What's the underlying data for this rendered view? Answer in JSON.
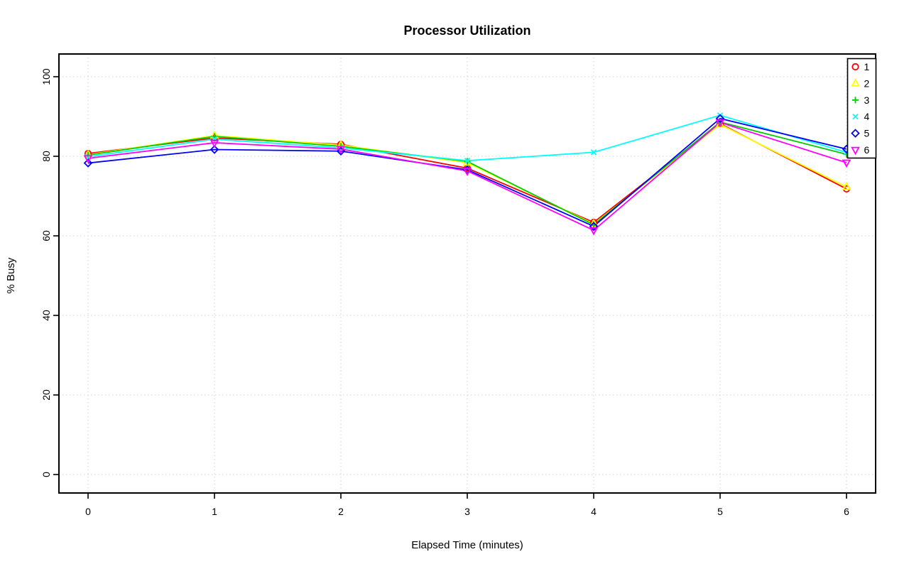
{
  "chart_data": {
    "type": "line",
    "title": "Processor Utilization",
    "xlabel": "Elapsed Time (minutes)",
    "ylabel": "% Busy",
    "x": [
      0,
      1,
      2,
      3,
      4,
      5,
      6
    ],
    "xticks": [
      0,
      1,
      2,
      3,
      4,
      5,
      6
    ],
    "yticks": [
      0,
      20,
      40,
      60,
      80,
      100
    ],
    "xlim": [
      -0.24,
      6.24
    ],
    "ylim": [
      -4,
      104
    ],
    "grid": "dotted",
    "grid_color": "#d2d2d2",
    "axis_color": "#000000",
    "background_color": "#ffffff",
    "legend_position": "top-right",
    "series": [
      {
        "name": "1",
        "marker": "circle",
        "color": "#ff0000",
        "values": [
          80.7,
          84.6,
          83.0,
          77.0,
          63.4,
          88.2,
          71.8
        ]
      },
      {
        "name": "2",
        "marker": "triangle-up",
        "color": "#ffff00",
        "values": [
          80.4,
          85.2,
          82.8,
          78.4,
          63.0,
          88.0,
          72.3
        ]
      },
      {
        "name": "3",
        "marker": "plus",
        "color": "#00cd00",
        "values": [
          80.3,
          85.0,
          82.5,
          78.7,
          62.8,
          88.6,
          80.5
        ]
      },
      {
        "name": "4",
        "marker": "x",
        "color": "#00ffff",
        "values": [
          79.9,
          84.3,
          82.1,
          78.9,
          81.0,
          90.3,
          81.0
        ]
      },
      {
        "name": "5",
        "marker": "diamond",
        "color": "#0000ff",
        "values": [
          78.3,
          81.7,
          81.3,
          76.6,
          62.4,
          89.5,
          81.8
        ]
      },
      {
        "name": "6",
        "marker": "triangle-down",
        "color": "#ff00ff",
        "values": [
          79.5,
          83.4,
          81.8,
          76.3,
          61.4,
          88.5,
          78.4
        ]
      }
    ],
    "legend_items": [
      {
        "label": "1",
        "marker": "circle",
        "color": "#ff0000"
      },
      {
        "label": "2",
        "marker": "triangle-up",
        "color": "#ffff00"
      },
      {
        "label": "3",
        "marker": "plus",
        "color": "#00cd00"
      },
      {
        "label": "4",
        "marker": "x",
        "color": "#00ffff"
      },
      {
        "label": "5",
        "marker": "diamond",
        "color": "#0000ff"
      },
      {
        "label": "6",
        "marker": "triangle-down",
        "color": "#ff00ff"
      }
    ]
  }
}
